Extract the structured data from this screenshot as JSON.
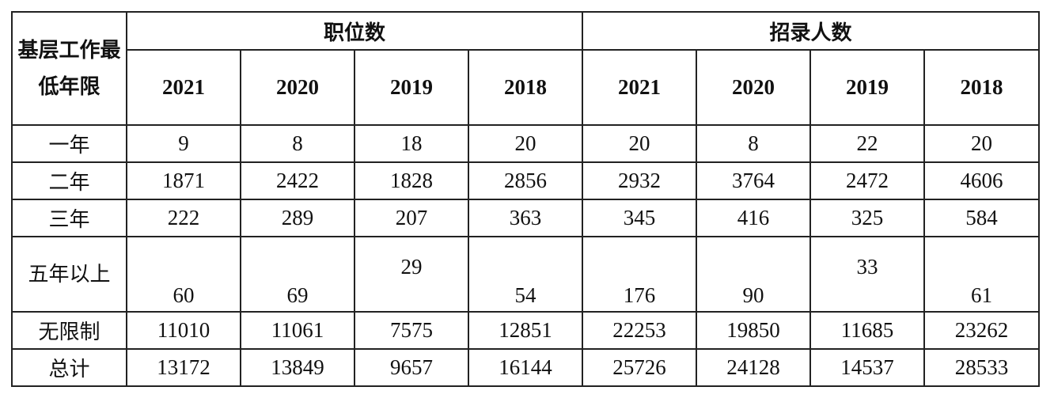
{
  "table": {
    "corner_header": "基层工作最低年限",
    "group_headers": [
      "职位数",
      "招录人数"
    ],
    "years": [
      "2021",
      "2020",
      "2019",
      "2018"
    ],
    "rows": [
      {
        "label": "一年",
        "values": [
          "9",
          "8",
          "18",
          "20",
          "20",
          "8",
          "22",
          "20"
        ]
      },
      {
        "label": "二年",
        "values": [
          "1871",
          "2422",
          "1828",
          "2856",
          "2932",
          "3764",
          "2472",
          "4606"
        ]
      },
      {
        "label": "三年",
        "values": [
          "222",
          "289",
          "207",
          "363",
          "345",
          "416",
          "325",
          "584"
        ]
      },
      {
        "label": "五年以上",
        "values": [
          "60",
          "69",
          "29",
          "54",
          "176",
          "90",
          "33",
          "61"
        ]
      },
      {
        "label": "无限制",
        "values": [
          "11010",
          "11061",
          "7575",
          "12851",
          "22253",
          "19850",
          "11685",
          "23262"
        ]
      },
      {
        "label": "总计",
        "values": [
          "13172",
          "13849",
          "9657",
          "16144",
          "25726",
          "24128",
          "14537",
          "28533"
        ]
      }
    ]
  }
}
